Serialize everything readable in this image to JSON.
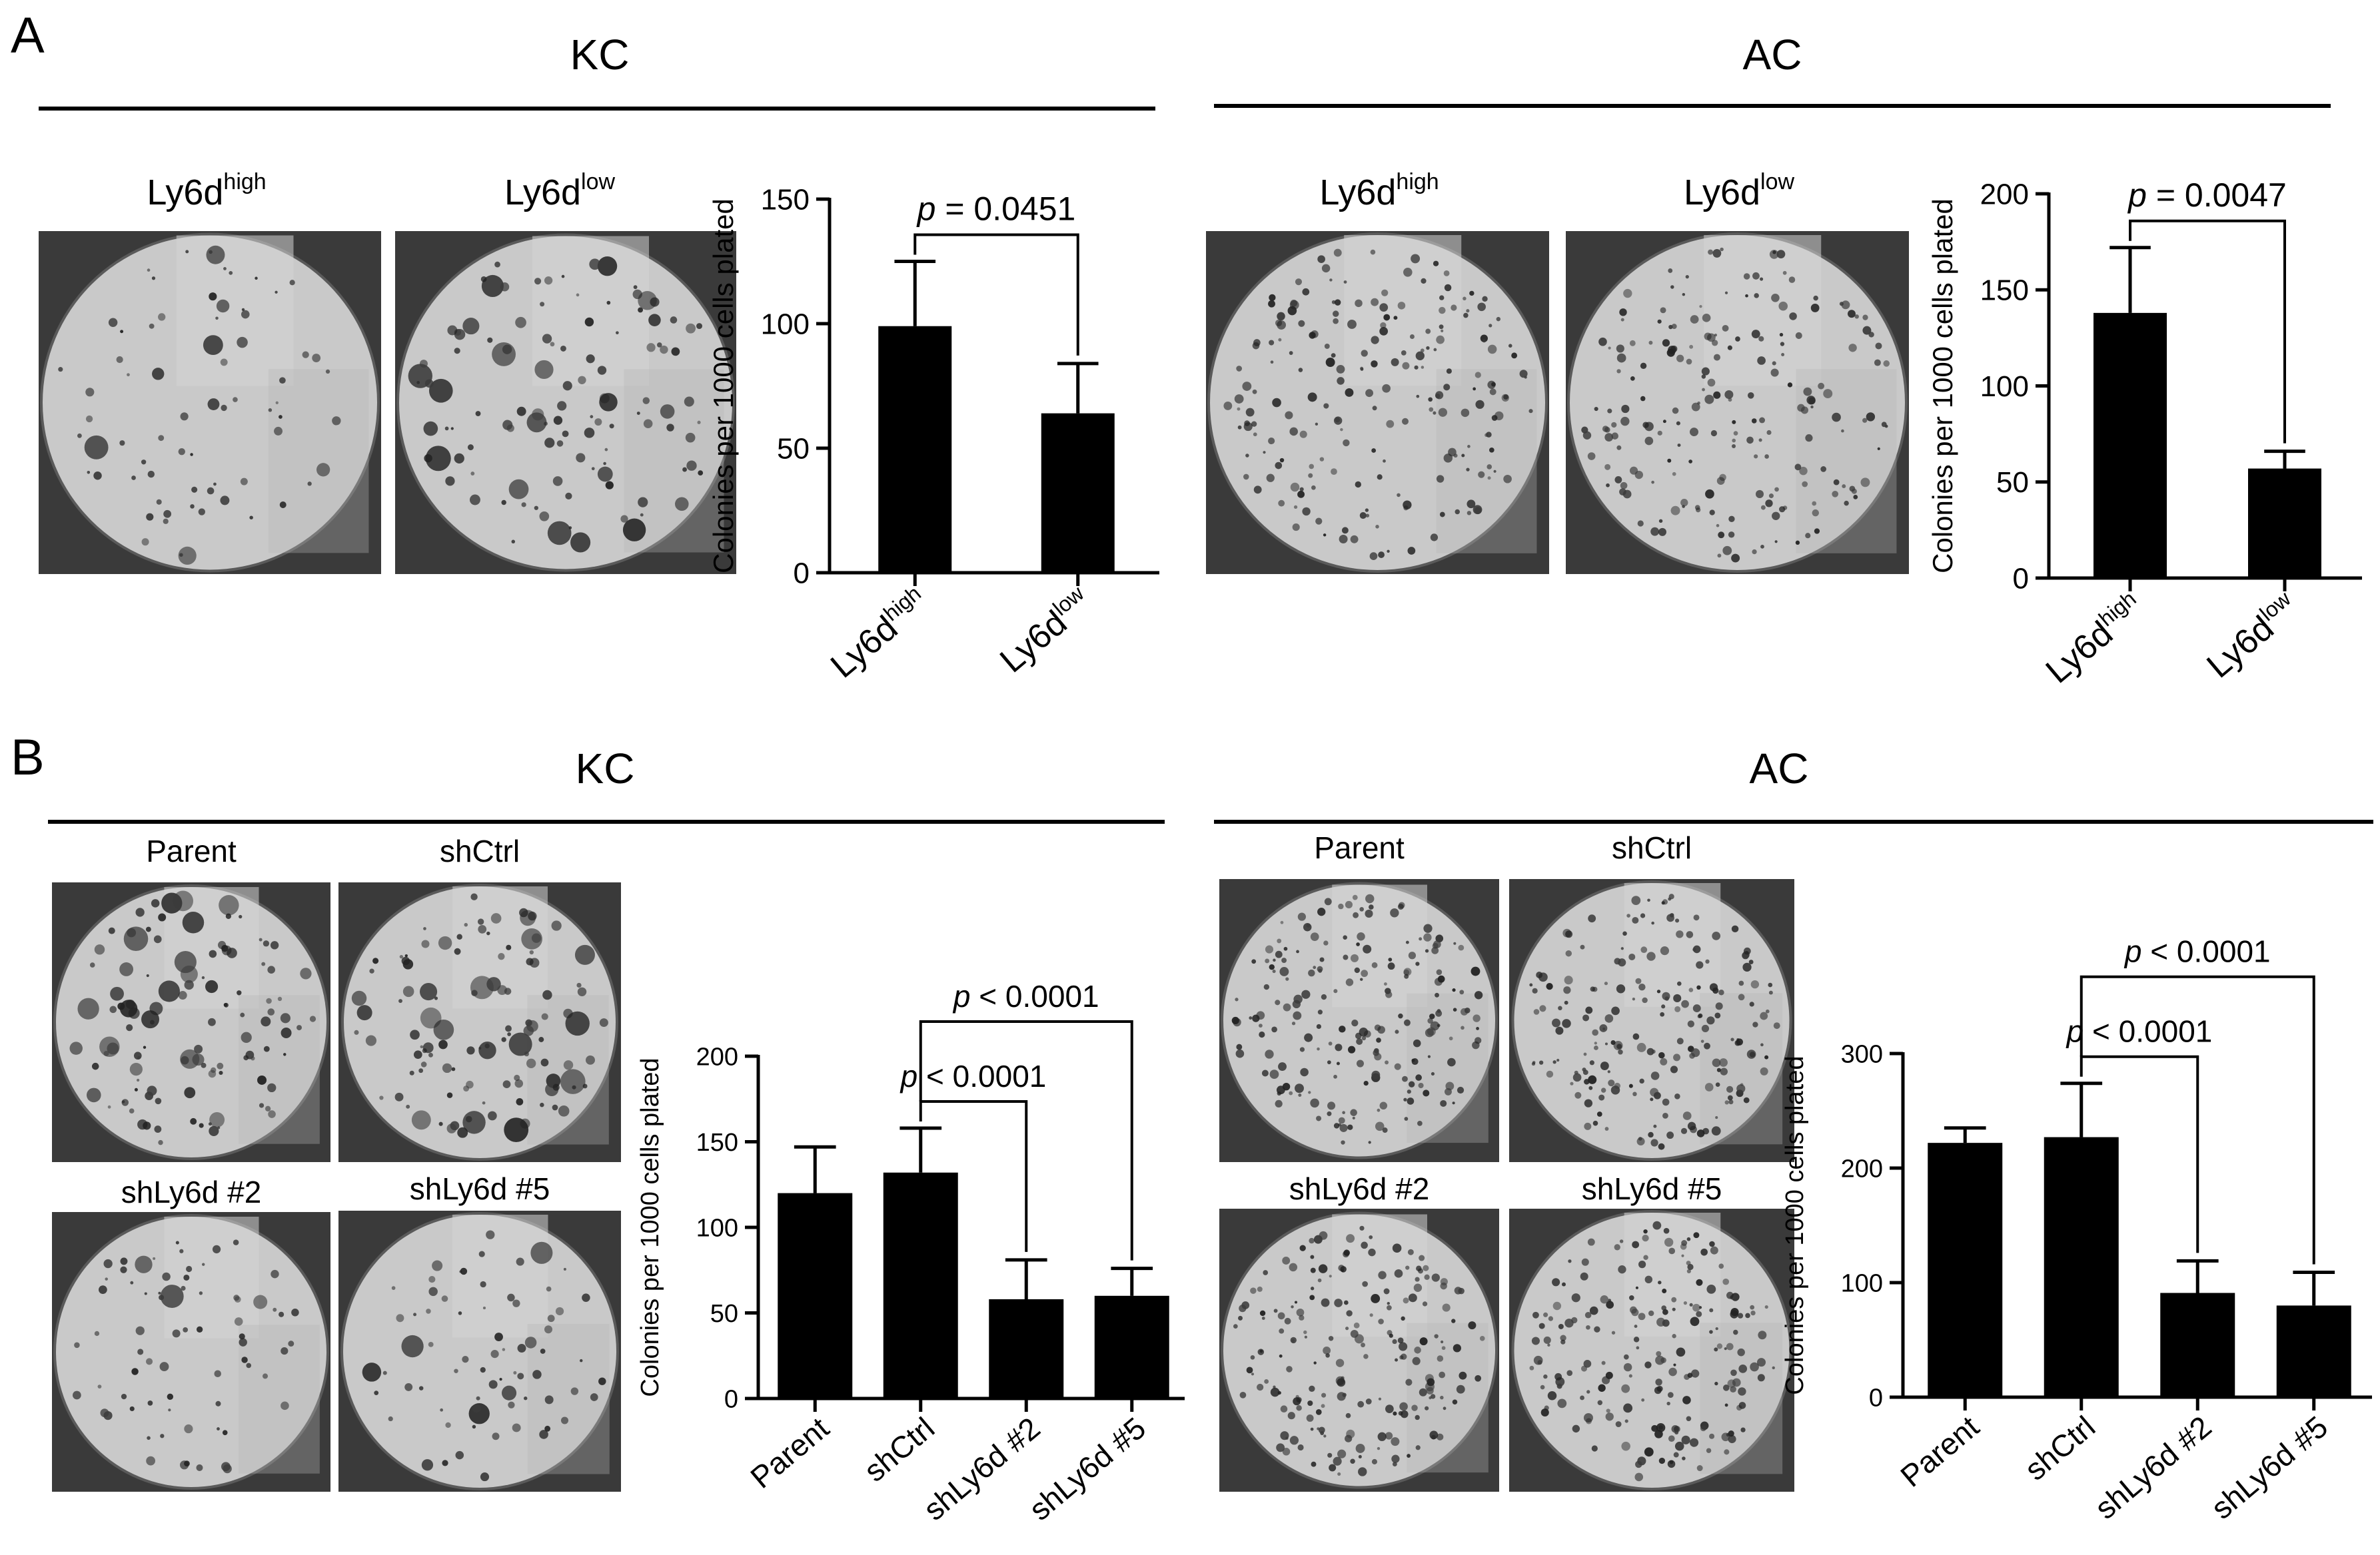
{
  "panels": {
    "a": {
      "letter": "A"
    },
    "b": {
      "letter": "B"
    }
  },
  "groups": {
    "a_kc": {
      "title": "KC"
    },
    "a_ac": {
      "title": "AC"
    },
    "b_kc": {
      "title": "KC"
    },
    "b_ac": {
      "title": "AC"
    }
  },
  "image_labels": {
    "a_kc": [
      {
        "base": "Ly6d",
        "sup": "high"
      },
      {
        "base": "Ly6d",
        "sup": "low"
      }
    ],
    "a_ac": [
      {
        "base": "Ly6d",
        "sup": "high"
      },
      {
        "base": "Ly6d",
        "sup": "low"
      }
    ],
    "b_kc": [
      "Parent",
      "shCtrl",
      "shLy6d #2",
      "shLy6d #5"
    ],
    "b_ac": [
      "Parent",
      "shCtrl",
      "shLy6d #2",
      "shLy6d #5"
    ]
  },
  "colors": {
    "bar": "#000000",
    "dish_bg": "#c9c9c9",
    "well": "#3a3a3a"
  },
  "chart_data": [
    {
      "id": "a_kc",
      "type": "bar",
      "categories": [
        {
          "base": "Ly6d",
          "sup": "high"
        },
        {
          "base": "Ly6d",
          "sup": "low"
        }
      ],
      "values": [
        99,
        64
      ],
      "errors": [
        26,
        20
      ],
      "ylabel": "Colonies per 1000 cells plated",
      "ylim": [
        0,
        150
      ],
      "yticks": [
        0,
        50,
        100,
        150
      ],
      "comparisons": [
        {
          "from": 0,
          "to": 1,
          "p_prefix": "p",
          "p_text": " = 0.0451"
        }
      ]
    },
    {
      "id": "a_ac",
      "type": "bar",
      "categories": [
        {
          "base": "Ly6d",
          "sup": "high"
        },
        {
          "base": "Ly6d",
          "sup": "low"
        }
      ],
      "values": [
        138,
        57
      ],
      "errors": [
        34,
        9
      ],
      "ylabel": "Colonies per 1000 cells plated",
      "ylim": [
        0,
        200
      ],
      "yticks": [
        0,
        50,
        100,
        150,
        200
      ],
      "comparisons": [
        {
          "from": 0,
          "to": 1,
          "p_prefix": "p",
          "p_text": " = 0.0047"
        }
      ]
    },
    {
      "id": "b_kc",
      "type": "bar",
      "categories": [
        "Parent",
        "shCtrl",
        "shLy6d #2",
        "shLy6d #5"
      ],
      "values": [
        120,
        132,
        58,
        60
      ],
      "errors": [
        27,
        26,
        23,
        16
      ],
      "ylabel": "Colonies per 1000 cells plated",
      "ylim": [
        0,
        200
      ],
      "yticks": [
        0,
        50,
        100,
        150,
        200
      ],
      "comparisons": [
        {
          "from": 1,
          "to": 2,
          "p_prefix": "p",
          "p_text": " < 0.0001"
        },
        {
          "from": 1,
          "to": 3,
          "p_prefix": "p",
          "p_text": " < 0.0001"
        }
      ]
    },
    {
      "id": "b_ac",
      "type": "bar",
      "categories": [
        "Parent",
        "shCtrl",
        "shLy6d #2",
        "shLy6d #5"
      ],
      "values": [
        222,
        227,
        91,
        80
      ],
      "errors": [
        13,
        47,
        28,
        29
      ],
      "ylabel": "Colonies per 1000 cells plated",
      "ylim": [
        0,
        300
      ],
      "yticks": [
        0,
        100,
        200,
        300
      ],
      "comparisons": [
        {
          "from": 1,
          "to": 2,
          "p_prefix": "p",
          "p_text": " < 0.0001"
        },
        {
          "from": 1,
          "to": 3,
          "p_prefix": "p",
          "p_text": " < 0.0001"
        }
      ]
    }
  ]
}
